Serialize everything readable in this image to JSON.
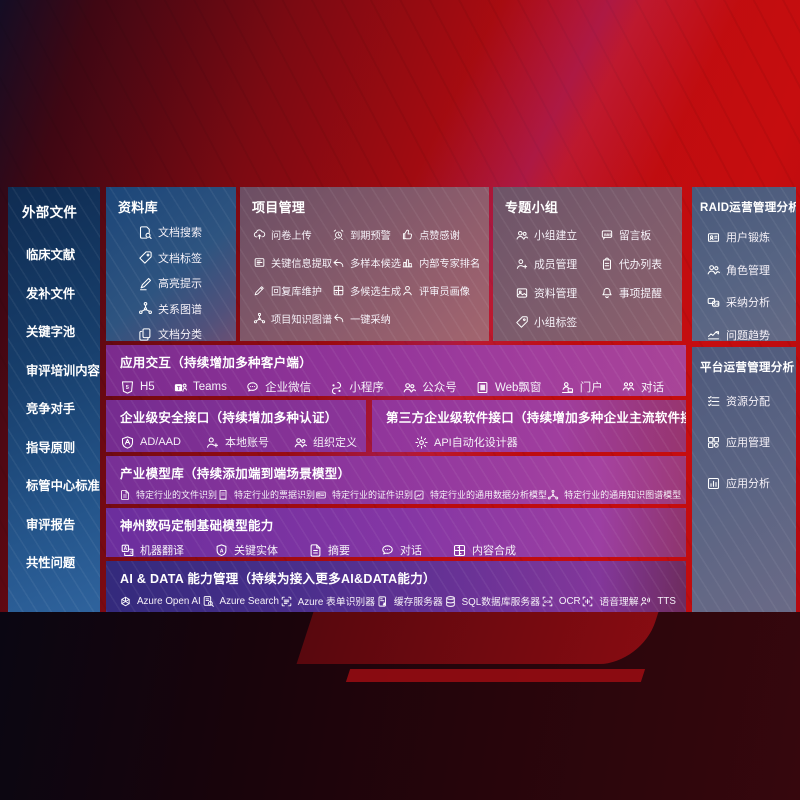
{
  "colors": {
    "background_red": "#b90c10",
    "sidebar_blue": "#1a4674",
    "panel_blue": "#2f557f",
    "panel_mauve": "#8a5c6b",
    "panel_slate": "#5a6584",
    "row_purple": "#93359a",
    "row_indigo": "#3b2c80",
    "text": "#ffffff"
  },
  "sidebar": {
    "title": "外部文件",
    "items": [
      "临床文献",
      "发补文件",
      "关键字池",
      "审评培训内容",
      "竞争对手",
      "指导原则",
      "标管中心标准",
      "审评报告",
      "共性问题"
    ]
  },
  "panels": {
    "repo": {
      "title": "资料库",
      "items": [
        {
          "icon": "doc-search",
          "label": "文档搜索"
        },
        {
          "icon": "tag",
          "label": "文档标签"
        },
        {
          "icon": "highlighter",
          "label": "高亮提示"
        },
        {
          "icon": "network",
          "label": "关系图谱"
        },
        {
          "icon": "doc-copy",
          "label": "文档分类"
        }
      ]
    },
    "project": {
      "title": "项目管理",
      "items": [
        {
          "icon": "cloud-upload",
          "label": "问卷上传"
        },
        {
          "icon": "alarm",
          "label": "到期预警"
        },
        {
          "icon": "thumbs-up",
          "label": "点赞感谢"
        },
        {
          "icon": "doc-extract",
          "label": "关键信息提取"
        },
        {
          "icon": "reply-arrow",
          "label": "多样本候选"
        },
        {
          "icon": "rank",
          "label": "内部专家排名"
        },
        {
          "icon": "pen",
          "label": "回复库维护"
        },
        {
          "icon": "puzzle",
          "label": "多候选生成"
        },
        {
          "icon": "person",
          "label": "评审员画像"
        },
        {
          "icon": "network",
          "label": "项目知识图谱"
        },
        {
          "icon": "arrow-adopt",
          "label": "一键采纳"
        }
      ]
    },
    "group": {
      "title": "专题小组",
      "items": [
        {
          "icon": "people",
          "label": "小组建立"
        },
        {
          "icon": "bbs",
          "label": "留言板"
        },
        {
          "icon": "person-add",
          "label": "成员管理"
        },
        {
          "icon": "clipboard",
          "label": "代办列表"
        },
        {
          "icon": "image",
          "label": "资料管理"
        },
        {
          "icon": "bell",
          "label": "事项提醒"
        },
        {
          "icon": "tag",
          "label": "小组标签"
        }
      ]
    },
    "raid": {
      "title": "RAID运营管理分析",
      "items": [
        {
          "icon": "id-badge",
          "label": "用户锻炼"
        },
        {
          "icon": "people",
          "label": "角色管理"
        },
        {
          "icon": "chat-qa",
          "label": "采纳分析"
        },
        {
          "icon": "trend",
          "label": "问题趋势"
        }
      ]
    },
    "platform": {
      "title": "平台运营管理分析",
      "items": [
        {
          "icon": "checklist",
          "label": "资源分配"
        },
        {
          "icon": "grid-apps",
          "label": "应用管理"
        },
        {
          "icon": "chart-app",
          "label": "应用分析"
        }
      ]
    }
  },
  "rows": {
    "interaction": {
      "title": "应用交互（持续增加多种客户端）",
      "items": [
        {
          "icon": "h5",
          "label": "H5"
        },
        {
          "icon": "teams",
          "label": "Teams"
        },
        {
          "icon": "chat-bubble",
          "label": "企业微信"
        },
        {
          "icon": "mini-s",
          "label": "小程序"
        },
        {
          "icon": "people",
          "label": "公众号"
        },
        {
          "icon": "window-web",
          "label": "Web飘窗"
        },
        {
          "icon": "portal-person",
          "label": "门户"
        },
        {
          "icon": "chat-people",
          "label": "对话"
        }
      ]
    },
    "security": {
      "title": "企业级安全接口（持续增加多种认证）",
      "items": [
        {
          "icon": "shield-ad",
          "label": "AD/AAD"
        },
        {
          "icon": "person-add",
          "label": "本地账号"
        },
        {
          "icon": "people",
          "label": "组织定义"
        }
      ]
    },
    "thirdparty": {
      "title": "第三方企业级软件接口（持续增加多种企业主流软件接口）",
      "items": [
        {
          "icon": "gear-api",
          "label": "API自动化设计器"
        }
      ]
    },
    "industry": {
      "title": "产业模型库（持续添加端到端场景模型）",
      "items": [
        {
          "icon": "doc-lines",
          "label": "特定行业的文件识别"
        },
        {
          "icon": "receipt",
          "label": "特定行业的票据识别"
        },
        {
          "icon": "id-card",
          "label": "特定行业的证件识别"
        },
        {
          "icon": "data-chart",
          "label": "特定行业的通用数据分析模型"
        },
        {
          "icon": "network",
          "label": "特定行业的通用知识图谱模型"
        }
      ]
    },
    "base": {
      "title": "神州数码定制基础模型能力",
      "items": [
        {
          "icon": "translate",
          "label": "机器翻译"
        },
        {
          "icon": "shield-a",
          "label": "关键实体"
        },
        {
          "icon": "doc-lines",
          "label": "摘要"
        },
        {
          "icon": "chat-bubble",
          "label": "对话"
        },
        {
          "icon": "compose",
          "label": "内容合成"
        }
      ]
    },
    "aidata": {
      "title": "AI & DATA 能力管理（持续为接入更多AI&DATA能力）",
      "items": [
        {
          "icon": "openai",
          "label": "Azure Open AI"
        },
        {
          "icon": "search-doc",
          "label": "Azure Search"
        },
        {
          "icon": "form-brackets",
          "label": "Azure 表单识别器"
        },
        {
          "icon": "server-cache",
          "label": "缓存服务器"
        },
        {
          "icon": "database",
          "label": "SQL数据库服务器"
        },
        {
          "icon": "ocr",
          "label": "OCR"
        },
        {
          "icon": "voice",
          "label": "语音理解"
        },
        {
          "icon": "tts",
          "label": "TTS"
        }
      ]
    }
  }
}
